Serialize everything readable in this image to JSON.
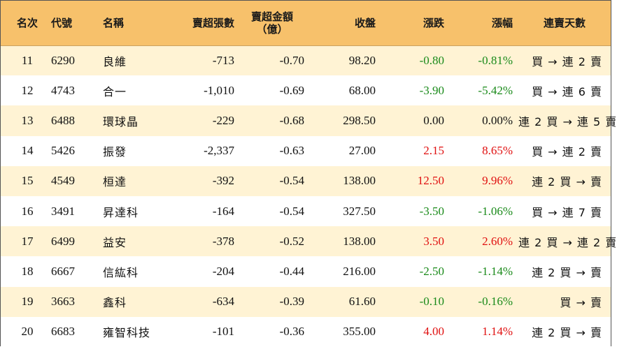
{
  "headers": {
    "rank": "名次",
    "code": "代號",
    "name": "名稱",
    "sell_sheets": "賣超張數",
    "sell_amount_line1": "賣超金額",
    "sell_amount_line2": "（億）",
    "close": "收盤",
    "change": "漲跌",
    "change_pct": "漲幅",
    "streak": "連賣天數"
  },
  "rows": [
    {
      "rank": "11",
      "code": "6290",
      "name": "良維",
      "sell_sheets": "-713",
      "sell_amount": "-0.70",
      "close": "98.20",
      "change": "-0.80",
      "change_pct": "-0.81%",
      "direction": "down",
      "streak": "買 → 連 2 賣"
    },
    {
      "rank": "12",
      "code": "4743",
      "name": "合一",
      "sell_sheets": "-1,010",
      "sell_amount": "-0.69",
      "close": "68.00",
      "change": "-3.90",
      "change_pct": "-5.42%",
      "direction": "down",
      "streak": "買 → 連 6 賣"
    },
    {
      "rank": "13",
      "code": "6488",
      "name": "環球晶",
      "sell_sheets": "-229",
      "sell_amount": "-0.68",
      "close": "298.50",
      "change": "0.00",
      "change_pct": "0.00%",
      "direction": "flat",
      "streak": "連 2 買 → 連 5 賣"
    },
    {
      "rank": "14",
      "code": "5426",
      "name": "振發",
      "sell_sheets": "-2,337",
      "sell_amount": "-0.63",
      "close": "27.00",
      "change": "2.15",
      "change_pct": "8.65%",
      "direction": "up",
      "streak": "買 → 連 2 賣"
    },
    {
      "rank": "15",
      "code": "4549",
      "name": "桓達",
      "sell_sheets": "-392",
      "sell_amount": "-0.54",
      "close": "138.00",
      "change": "12.50",
      "change_pct": "9.96%",
      "direction": "up",
      "streak": "連 2 買 → 賣"
    },
    {
      "rank": "16",
      "code": "3491",
      "name": "昇達科",
      "sell_sheets": "-164",
      "sell_amount": "-0.54",
      "close": "327.50",
      "change": "-3.50",
      "change_pct": "-1.06%",
      "direction": "down",
      "streak": "買 → 連 7 賣"
    },
    {
      "rank": "17",
      "code": "6499",
      "name": "益安",
      "sell_sheets": "-378",
      "sell_amount": "-0.52",
      "close": "138.00",
      "change": "3.50",
      "change_pct": "2.60%",
      "direction": "up",
      "streak": "連 2 買 → 連 2 賣"
    },
    {
      "rank": "18",
      "code": "6667",
      "name": "信紘科",
      "sell_sheets": "-204",
      "sell_amount": "-0.44",
      "close": "216.00",
      "change": "-2.50",
      "change_pct": "-1.14%",
      "direction": "down",
      "streak": "連 2 買 → 賣"
    },
    {
      "rank": "19",
      "code": "3663",
      "name": "鑫科",
      "sell_sheets": "-634",
      "sell_amount": "-0.39",
      "close": "61.60",
      "change": "-0.10",
      "change_pct": "-0.16%",
      "direction": "down",
      "streak": "買 → 賣"
    },
    {
      "rank": "20",
      "code": "6683",
      "name": "雍智科技",
      "sell_sheets": "-101",
      "sell_amount": "-0.36",
      "close": "355.00",
      "change": "4.00",
      "change_pct": "1.14%",
      "direction": "up",
      "streak": "連 2 買 → 賣"
    }
  ],
  "colors": {
    "header_bg": "#F7C16B",
    "row_alt_bg": "#FFF3D4",
    "down": "#1a8a1a",
    "up": "#e01010"
  }
}
